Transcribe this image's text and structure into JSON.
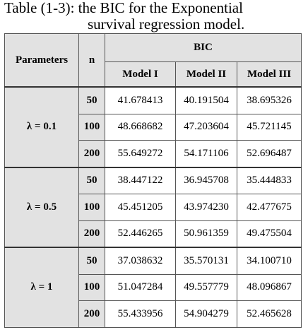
{
  "title": [
    "Table (1-3): the BIC for the Exponential",
    "survival regression model."
  ],
  "table": {
    "header": {
      "parameters": "Parameters",
      "n": "n",
      "group": "BIC",
      "models": [
        "Model I",
        "Model II",
        "Model III"
      ]
    },
    "groups": [
      {
        "parameter": "λ = 0.1",
        "rows": [
          {
            "n": "50",
            "values": [
              "41.678413",
              "40.191504",
              "38.695326"
            ]
          },
          {
            "n": "100",
            "values": [
              "48.668682",
              "47.203604",
              "45.721145"
            ]
          },
          {
            "n": "200",
            "values": [
              "55.649272",
              "54.171106",
              "52.696487"
            ]
          }
        ]
      },
      {
        "parameter": "λ = 0.5",
        "rows": [
          {
            "n": "50",
            "values": [
              "38.447122",
              "36.945708",
              "35.444833"
            ]
          },
          {
            "n": "100",
            "values": [
              "45.451205",
              "43.974230",
              "42.477675"
            ]
          },
          {
            "n": "200",
            "values": [
              "52.446265",
              "50.961359",
              "49.475504"
            ]
          }
        ]
      },
      {
        "parameter": "λ = 1",
        "rows": [
          {
            "n": "50",
            "values": [
              "37.038632",
              "35.570131",
              "34.100710"
            ]
          },
          {
            "n": "100",
            "values": [
              "51.047284",
              "49.557779",
              "48.096867"
            ]
          },
          {
            "n": "200",
            "values": [
              "55.433956",
              "54.904279",
              "52.465628"
            ]
          }
        ]
      }
    ]
  }
}
